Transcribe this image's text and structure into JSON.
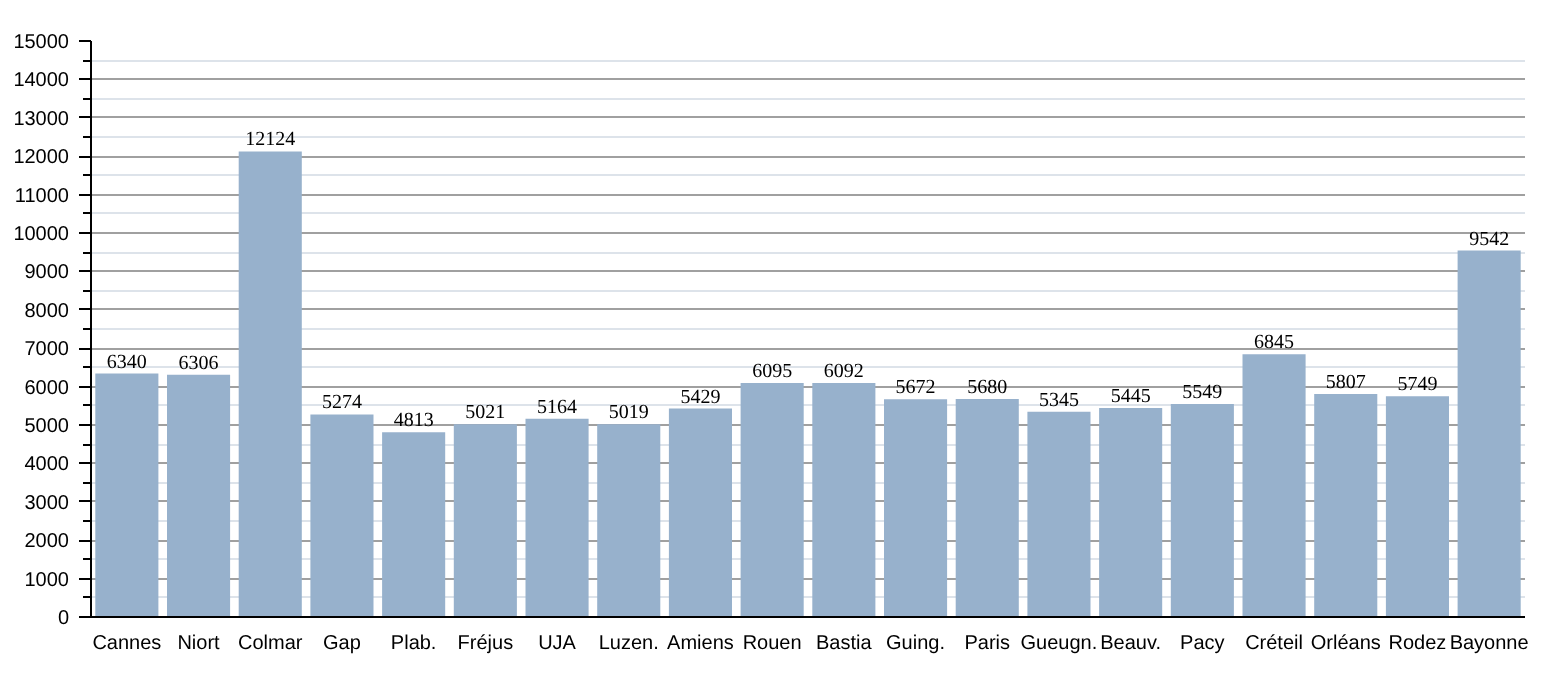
{
  "chart_data": {
    "type": "bar",
    "categories": [
      "Cannes",
      "Niort",
      "Colmar",
      "Gap",
      "Plab.",
      "Fréjus",
      "UJA",
      "Luzen.",
      "Amiens",
      "Rouen",
      "Bastia",
      "Guing.",
      "Paris",
      "Gueugn.",
      "Beauv.",
      "Pacy",
      "Créteil",
      "Orléans",
      "Rodez",
      "Bayonne"
    ],
    "values": [
      6340,
      6306,
      12124,
      5274,
      4813,
      5021,
      5164,
      5019,
      5429,
      6095,
      6092,
      5672,
      5680,
      5345,
      5445,
      5549,
      6845,
      5807,
      5749,
      9542
    ],
    "color": "#97b1cc",
    "data_labels": true,
    "ylim": [
      0,
      15000
    ],
    "yticks": [
      0,
      {
        "value": 500,
        "label": null
      },
      1000,
      {
        "value": 1500,
        "label": null
      },
      2000,
      {
        "value": 2500,
        "label": null
      },
      3000,
      {
        "value": 3500,
        "label": null
      },
      4000,
      {
        "value": 4500,
        "label": null
      },
      5000,
      {
        "value": 5500,
        "label": null
      },
      6000,
      {
        "value": 6500,
        "label": null
      },
      7000,
      {
        "value": 7500,
        "label": null
      },
      8000,
      {
        "value": 8500,
        "label": null
      },
      9000,
      {
        "value": 9500,
        "label": null
      },
      10000,
      {
        "value": 10500,
        "label": null
      },
      11000,
      {
        "value": 11500,
        "label": null
      },
      12000,
      {
        "value": 12500,
        "label": null
      },
      13000,
      {
        "value": 13500,
        "label": null
      },
      14000,
      {
        "value": 14500,
        "label": null
      },
      15000
    ],
    "grid": "y"
  }
}
